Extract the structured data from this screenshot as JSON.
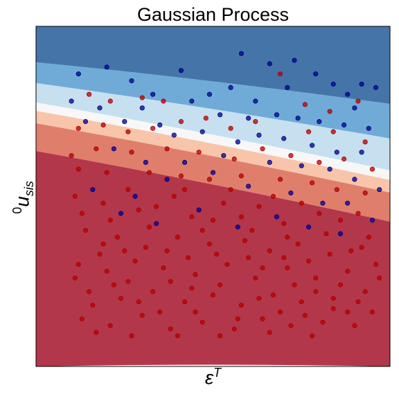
{
  "chart_data": {
    "type": "scatter",
    "title": "Gaussian Process",
    "xlabel": "ε^T",
    "ylabel": "u_sis^0",
    "xlim": [
      0,
      1
    ],
    "ylim": [
      0,
      1
    ],
    "x_ticks": [],
    "y_ticks": [],
    "grid": false,
    "legend": "none",
    "background": "decision-region contour, blue at top to red at bottom",
    "colors": {
      "contour_levels": [
        "#4575a8",
        "#6fabd6",
        "#c6e0f0",
        "#f7f7f7",
        "#f8c5ab",
        "#e07e6c",
        "#b2374b"
      ],
      "class_blue": "#00008b",
      "class_red": "#b30000"
    },
    "series": [
      {
        "class": "blue",
        "color": "#00008b",
        "points": [
          [
            0.12,
            0.86
          ],
          [
            0.2,
            0.88
          ],
          [
            0.27,
            0.84
          ],
          [
            0.33,
            0.8
          ],
          [
            0.41,
            0.87
          ],
          [
            0.49,
            0.8
          ],
          [
            0.55,
            0.82
          ],
          [
            0.58,
            0.92
          ],
          [
            0.66,
            0.89
          ],
          [
            0.73,
            0.9
          ],
          [
            0.79,
            0.86
          ],
          [
            0.84,
            0.83
          ],
          [
            0.92,
            0.83
          ],
          [
            0.96,
            0.82
          ],
          [
            0.18,
            0.76
          ],
          [
            0.25,
            0.72
          ],
          [
            0.35,
            0.71
          ],
          [
            0.44,
            0.78
          ],
          [
            0.52,
            0.74
          ],
          [
            0.6,
            0.73
          ],
          [
            0.68,
            0.74
          ],
          [
            0.74,
            0.73
          ],
          [
            0.8,
            0.72
          ],
          [
            0.87,
            0.71
          ],
          [
            0.9,
            0.76
          ],
          [
            0.94,
            0.7
          ],
          [
            0.1,
            0.78
          ],
          [
            0.39,
            0.68
          ],
          [
            0.47,
            0.69
          ],
          [
            0.57,
            0.66
          ],
          [
            0.63,
            0.68
          ],
          [
            0.7,
            0.67
          ],
          [
            0.78,
            0.65
          ],
          [
            0.85,
            0.63
          ],
          [
            0.92,
            0.63
          ],
          [
            0.22,
            0.64
          ],
          [
            0.31,
            0.6
          ],
          [
            0.42,
            0.6
          ],
          [
            0.53,
            0.62
          ],
          [
            0.66,
            0.6
          ],
          [
            0.75,
            0.59
          ],
          [
            0.83,
            0.58
          ],
          [
            0.9,
            0.55
          ],
          [
            0.97,
            0.52
          ],
          [
            0.16,
            0.52
          ],
          [
            0.28,
            0.5
          ],
          [
            0.37,
            0.55
          ],
          [
            0.5,
            0.57
          ],
          [
            0.6,
            0.53
          ],
          [
            0.72,
            0.51
          ],
          [
            0.81,
            0.48
          ],
          [
            0.88,
            0.48
          ],
          [
            0.24,
            0.45
          ],
          [
            0.34,
            0.42
          ],
          [
            0.46,
            0.46
          ],
          [
            0.57,
            0.41
          ],
          [
            0.68,
            0.44
          ],
          [
            0.77,
            0.41
          ],
          [
            0.86,
            0.39
          ],
          [
            0.95,
            0.43
          ],
          [
            0.14,
            0.72
          ],
          [
            0.3,
            0.76
          ],
          [
            0.62,
            0.78
          ],
          [
            0.71,
            0.82
          ],
          [
            0.88,
            0.8
          ]
        ]
      },
      {
        "class": "red",
        "color": "#b30000",
        "points": [
          [
            0.15,
            0.8
          ],
          [
            0.21,
            0.78
          ],
          [
            0.3,
            0.79
          ],
          [
            0.36,
            0.78
          ],
          [
            0.69,
            0.86
          ],
          [
            0.76,
            0.77
          ],
          [
            0.83,
            0.75
          ],
          [
            0.91,
            0.78
          ],
          [
            0.12,
            0.7
          ],
          [
            0.19,
            0.71
          ],
          [
            0.26,
            0.69
          ],
          [
            0.33,
            0.7
          ],
          [
            0.41,
            0.72
          ],
          [
            0.48,
            0.73
          ],
          [
            0.55,
            0.7
          ],
          [
            0.62,
            0.72
          ],
          [
            0.77,
            0.69
          ],
          [
            0.84,
            0.69
          ],
          [
            0.93,
            0.66
          ],
          [
            0.1,
            0.62
          ],
          [
            0.17,
            0.64
          ],
          [
            0.27,
            0.63
          ],
          [
            0.37,
            0.64
          ],
          [
            0.46,
            0.63
          ],
          [
            0.56,
            0.61
          ],
          [
            0.64,
            0.64
          ],
          [
            0.72,
            0.62
          ],
          [
            0.8,
            0.6
          ],
          [
            0.87,
            0.61
          ],
          [
            0.95,
            0.58
          ],
          [
            0.12,
            0.58
          ],
          [
            0.2,
            0.57
          ],
          [
            0.32,
            0.57
          ],
          [
            0.41,
            0.56
          ],
          [
            0.49,
            0.55
          ],
          [
            0.58,
            0.56
          ],
          [
            0.69,
            0.55
          ],
          [
            0.78,
            0.54
          ],
          [
            0.85,
            0.52
          ],
          [
            0.93,
            0.51
          ],
          [
            0.11,
            0.5
          ],
          [
            0.19,
            0.48
          ],
          [
            0.29,
            0.46
          ],
          [
            0.39,
            0.5
          ],
          [
            0.44,
            0.44
          ],
          [
            0.53,
            0.48
          ],
          [
            0.63,
            0.47
          ],
          [
            0.7,
            0.42
          ],
          [
            0.8,
            0.45
          ],
          [
            0.91,
            0.45
          ],
          [
            0.14,
            0.4
          ],
          [
            0.23,
            0.38
          ],
          [
            0.31,
            0.35
          ],
          [
            0.4,
            0.38
          ],
          [
            0.49,
            0.36
          ],
          [
            0.59,
            0.37
          ],
          [
            0.66,
            0.34
          ],
          [
            0.74,
            0.36
          ],
          [
            0.83,
            0.33
          ],
          [
            0.92,
            0.35
          ],
          [
            0.12,
            0.3
          ],
          [
            0.2,
            0.28
          ],
          [
            0.28,
            0.31
          ],
          [
            0.36,
            0.29
          ],
          [
            0.45,
            0.27
          ],
          [
            0.54,
            0.3
          ],
          [
            0.62,
            0.26
          ],
          [
            0.71,
            0.29
          ],
          [
            0.79,
            0.26
          ],
          [
            0.88,
            0.28
          ],
          [
            0.96,
            0.3
          ],
          [
            0.15,
            0.22
          ],
          [
            0.24,
            0.2
          ],
          [
            0.33,
            0.22
          ],
          [
            0.42,
            0.19
          ],
          [
            0.5,
            0.21
          ],
          [
            0.58,
            0.18
          ],
          [
            0.67,
            0.21
          ],
          [
            0.75,
            0.19
          ],
          [
            0.84,
            0.2
          ],
          [
            0.93,
            0.22
          ],
          [
            0.13,
            0.14
          ],
          [
            0.21,
            0.12
          ],
          [
            0.3,
            0.15
          ],
          [
            0.38,
            0.11
          ],
          [
            0.47,
            0.13
          ],
          [
            0.56,
            0.11
          ],
          [
            0.64,
            0.14
          ],
          [
            0.72,
            0.12
          ],
          [
            0.81,
            0.13
          ],
          [
            0.9,
            0.12
          ],
          [
            0.18,
            0.33
          ],
          [
            0.26,
            0.25
          ],
          [
            0.35,
            0.16
          ],
          [
            0.43,
            0.32
          ],
          [
            0.52,
            0.24
          ],
          [
            0.61,
            0.4
          ],
          [
            0.69,
            0.16
          ],
          [
            0.77,
            0.31
          ],
          [
            0.86,
            0.24
          ],
          [
            0.95,
            0.16
          ],
          [
            0.17,
            0.1
          ],
          [
            0.27,
            0.09
          ],
          [
            0.4,
            0.09
          ],
          [
            0.52,
            0.09
          ],
          [
            0.66,
            0.1
          ],
          [
            0.78,
            0.09
          ],
          [
            0.88,
            0.16
          ],
          [
            0.21,
            0.43
          ],
          [
            0.34,
            0.47
          ],
          [
            0.47,
            0.4
          ],
          [
            0.6,
            0.32
          ],
          [
            0.73,
            0.24
          ],
          [
            0.82,
            0.39
          ],
          [
            0.11,
            0.26
          ],
          [
            0.25,
            0.34
          ],
          [
            0.38,
            0.25
          ],
          [
            0.51,
            0.33
          ],
          [
            0.64,
            0.29
          ],
          [
            0.76,
            0.15
          ],
          [
            0.89,
            0.34
          ],
          [
            0.16,
            0.18
          ],
          [
            0.29,
            0.19
          ],
          [
            0.44,
            0.23
          ],
          [
            0.57,
            0.14
          ],
          [
            0.7,
            0.32
          ],
          [
            0.84,
            0.17
          ],
          [
            0.97,
            0.26
          ],
          [
            0.19,
            0.36
          ],
          [
            0.32,
            0.41
          ],
          [
            0.45,
            0.16
          ],
          [
            0.58,
            0.44
          ],
          [
            0.71,
            0.38
          ],
          [
            0.86,
            0.43
          ],
          [
            0.13,
            0.45
          ],
          [
            0.26,
            0.52
          ],
          [
            0.42,
            0.52
          ],
          [
            0.55,
            0.52
          ],
          [
            0.67,
            0.5
          ],
          [
            0.75,
            0.48
          ],
          [
            0.94,
            0.38
          ],
          [
            0.22,
            0.24
          ],
          [
            0.37,
            0.34
          ],
          [
            0.5,
            0.43
          ],
          [
            0.63,
            0.2
          ],
          [
            0.79,
            0.22
          ],
          [
            0.91,
            0.19
          ]
        ]
      }
    ]
  }
}
